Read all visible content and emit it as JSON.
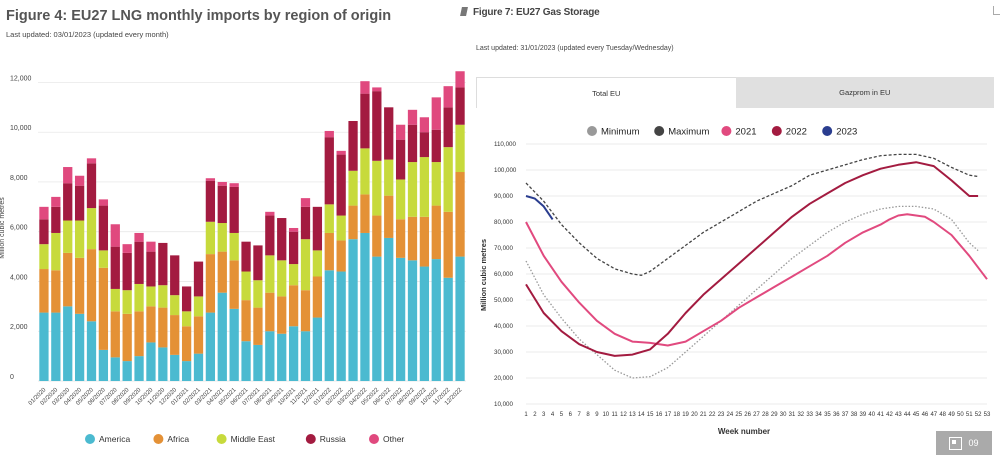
{
  "fig4": {
    "title": "Figure 4: EU27 LNG monthly imports by region of origin",
    "updated": "Last updated: 03/01/2023 (updated every month)"
  },
  "fig7": {
    "title": "Figure 7: EU27 Gas Storage",
    "updated": "Last updated: 31/01/2023 (updated every Tuesday/Wednesday)",
    "tabs": [
      "Total EU",
      "Gazprom in EU"
    ]
  },
  "page_number": "09",
  "chart_data": [
    {
      "type": "bar",
      "stacked": true,
      "ylabel": "Million cubic metres",
      "ylim": [
        0,
        12500
      ],
      "yticks": [
        0,
        2000,
        4000,
        6000,
        8000,
        10000,
        12000
      ],
      "ytick_labels": [
        "0",
        "2,000",
        "4,000",
        "6,000",
        "8,000",
        "10,000",
        "12,000"
      ],
      "grid": true,
      "legend_position": "bottom",
      "categories": [
        "01/2020",
        "02/2020",
        "03/2020",
        "04/2020",
        "05/2020",
        "06/2020",
        "07/2020",
        "08/2020",
        "09/2020",
        "10/2020",
        "11/2020",
        "12/2020",
        "01/2021",
        "02/2021",
        "03/2021",
        "04/2021",
        "05/2021",
        "06/2021",
        "07/2021",
        "08/2021",
        "09/2021",
        "10/2021",
        "11/2021",
        "12/2021",
        "01/2022",
        "02/2022",
        "03/2022",
        "04/2022",
        "05/2022",
        "06/2022",
        "07/2022",
        "08/2022",
        "09/2022",
        "10/2022",
        "11/2022",
        "12/2022"
      ],
      "tick_labels": [
        "01/2020",
        "02/2020",
        "03/2020",
        "04/2020",
        "05/2020",
        "06/2020",
        "07/2020",
        "08/2020",
        "09/2020",
        "10/2020",
        "11/2020",
        "12/2020",
        "01/2021",
        "02/2021",
        "03/2021",
        "04/2021",
        "05/2021",
        "06/2021",
        "07/2021",
        "08/2021",
        "09/2021",
        "10/2021",
        "11/2021",
        "12/2021",
        "01/2022",
        "02/2022",
        "03/2022",
        "04/2022",
        "05/2022",
        "06/2022",
        "07/2022",
        "08/2022",
        "09/2022",
        "10/2022",
        "11/2022",
        "12/2022"
      ],
      "series": [
        {
          "name": "America",
          "color": "#4bbad0",
          "values": [
            2750,
            2750,
            3000,
            2700,
            2400,
            1250,
            950,
            800,
            1000,
            1550,
            1350,
            1050,
            800,
            1100,
            2750,
            3550,
            2900,
            1600,
            1450,
            2000,
            1900,
            2200,
            2000,
            2550,
            4450,
            4400,
            5700,
            5950,
            5000,
            5750,
            4950,
            4850,
            4600,
            4900,
            4150,
            5000
          ]
        },
        {
          "name": "Africa",
          "color": "#e49136",
          "values": [
            1750,
            1700,
            2150,
            2250,
            2900,
            3300,
            1850,
            1900,
            1800,
            1450,
            1600,
            1600,
            1400,
            1500,
            2350,
            1650,
            1950,
            1650,
            1500,
            1550,
            1500,
            1650,
            1650,
            1650,
            1500,
            1250,
            1350,
            1550,
            1650,
            1700,
            1550,
            1750,
            2000,
            2150,
            2650,
            3400
          ]
        },
        {
          "name": "Middle East",
          "color": "#c7da3c",
          "values": [
            1000,
            1500,
            1300,
            1500,
            1650,
            700,
            900,
            950,
            1100,
            800,
            900,
            800,
            600,
            800,
            1300,
            1150,
            1100,
            1150,
            1100,
            1500,
            1450,
            850,
            2050,
            1050,
            1150,
            1000,
            1400,
            1850,
            2200,
            1450,
            1600,
            2200,
            2400,
            1750,
            2600,
            1900
          ]
        },
        {
          "name": "Russia",
          "color": "#a31b40",
          "values": [
            1000,
            1050,
            1500,
            1400,
            1800,
            1800,
            1700,
            1500,
            1700,
            1400,
            1700,
            1600,
            1000,
            1400,
            1650,
            1500,
            1850,
            1200,
            1400,
            1600,
            1700,
            1300,
            1300,
            1750,
            2700,
            2450,
            2000,
            2200,
            2800,
            2100,
            1600,
            1500,
            1000,
            1300,
            1600,
            1500
          ]
        },
        {
          "name": "Other",
          "color": "#e0497e",
          "values": [
            500,
            400,
            650,
            400,
            200,
            250,
            900,
            350,
            350,
            400,
            0,
            0,
            0,
            0,
            100,
            150,
            150,
            0,
            0,
            150,
            0,
            150,
            350,
            0,
            250,
            150,
            0,
            500,
            150,
            0,
            600,
            600,
            600,
            1300,
            850,
            650
          ]
        }
      ]
    },
    {
      "type": "line",
      "xlabel": "Week number",
      "ylabel": "Million cubic metres",
      "ylim": [
        10000,
        110000
      ],
      "xlim": [
        1,
        53
      ],
      "yticks": [
        10000,
        20000,
        30000,
        40000,
        50000,
        60000,
        70000,
        80000,
        90000,
        100000,
        110000
      ],
      "ytick_labels": [
        "10,000",
        "20,000",
        "30,000",
        "40,000",
        "50,000",
        "60,000",
        "70,000",
        "80,000",
        "90,000",
        "100,000",
        "110,000"
      ],
      "xticks": [
        1,
        2,
        3,
        4,
        5,
        6,
        7,
        8,
        9,
        10,
        11,
        12,
        13,
        14,
        15,
        16,
        17,
        18,
        19,
        20,
        21,
        22,
        23,
        24,
        25,
        26,
        27,
        28,
        29,
        30,
        31,
        32,
        33,
        34,
        35,
        36,
        37,
        38,
        39,
        40,
        41,
        42,
        43,
        44,
        45,
        46,
        47,
        48,
        49,
        50,
        51,
        52,
        53
      ],
      "xtick_labels": [
        "1",
        "2",
        "3",
        "4",
        "5",
        "6",
        "7",
        "8",
        "9",
        "10",
        "11",
        "12",
        "13",
        "14",
        "15",
        "16",
        "17",
        "18",
        "19",
        "20",
        "21",
        "22",
        "23",
        "24",
        "25",
        "26",
        "27",
        "28",
        "29",
        "30",
        "31",
        "32",
        "33",
        "34",
        "35",
        "36",
        "37",
        "38",
        "39",
        "40",
        "41",
        "42",
        "43",
        "44",
        "45",
        "46",
        "47",
        "48",
        "49",
        "50",
        "51",
        "52",
        "53"
      ],
      "grid": true,
      "legend_position": "top",
      "series": [
        {
          "name": "Minimum",
          "color": "#999999",
          "style": "dotted",
          "x": [
            1,
            3,
            5,
            7,
            9,
            11,
            13,
            15,
            17,
            19,
            21,
            23,
            25,
            27,
            29,
            31,
            33,
            35,
            37,
            39,
            41,
            43,
            45,
            47,
            49,
            51,
            52
          ],
          "y": [
            65000,
            52000,
            43000,
            35000,
            29000,
            23000,
            20000,
            20500,
            24000,
            30000,
            36000,
            42000,
            48000,
            54000,
            60000,
            66000,
            71000,
            76000,
            80000,
            83000,
            85000,
            86000,
            86000,
            85000,
            81000,
            72000,
            69000
          ]
        },
        {
          "name": "Maximum",
          "color": "#444444",
          "style": "dashed",
          "x": [
            1,
            3,
            5,
            7,
            9,
            11,
            13,
            14,
            15,
            17,
            19,
            21,
            23,
            25,
            27,
            29,
            31,
            33,
            35,
            37,
            39,
            41,
            43,
            45,
            47,
            49,
            51,
            52
          ],
          "y": [
            95000,
            88000,
            79000,
            72000,
            66000,
            62000,
            60000,
            59500,
            61000,
            66000,
            71000,
            76000,
            80000,
            84000,
            88000,
            91000,
            94000,
            98000,
            100000,
            102000,
            104000,
            105500,
            106000,
            106000,
            104500,
            101000,
            98000,
            97500
          ]
        },
        {
          "name": "2021",
          "color": "#e14a7f",
          "style": "solid",
          "x": [
            1,
            3,
            5,
            7,
            9,
            11,
            13,
            15,
            17,
            19,
            21,
            23,
            25,
            27,
            29,
            31,
            33,
            35,
            37,
            39,
            41,
            42,
            43,
            44,
            45,
            46,
            47,
            49,
            51,
            53
          ],
          "y": [
            80000,
            67000,
            57000,
            49000,
            42000,
            37000,
            34000,
            33500,
            32500,
            34000,
            38000,
            42000,
            47000,
            51000,
            55000,
            59000,
            63000,
            67000,
            72000,
            76000,
            79000,
            81000,
            82500,
            83000,
            82500,
            82000,
            80000,
            75000,
            67000,
            58000
          ]
        },
        {
          "name": "2022",
          "color": "#a31b40",
          "style": "solid",
          "x": [
            1,
            3,
            5,
            7,
            9,
            11,
            13,
            15,
            17,
            19,
            21,
            23,
            25,
            27,
            29,
            31,
            33,
            35,
            37,
            39,
            41,
            43,
            45,
            47,
            49,
            51,
            52
          ],
          "y": [
            56000,
            45000,
            38000,
            33000,
            30000,
            28500,
            29000,
            31000,
            37000,
            45000,
            52000,
            58000,
            64000,
            70000,
            76000,
            82000,
            87000,
            91000,
            95000,
            98000,
            100500,
            102000,
            103000,
            101500,
            96000,
            90000,
            90000
          ]
        },
        {
          "name": "2023",
          "color": "#2a3d8f",
          "style": "solid",
          "x": [
            1,
            2,
            3,
            4
          ],
          "y": [
            90000,
            89000,
            86000,
            81000
          ]
        }
      ]
    }
  ]
}
